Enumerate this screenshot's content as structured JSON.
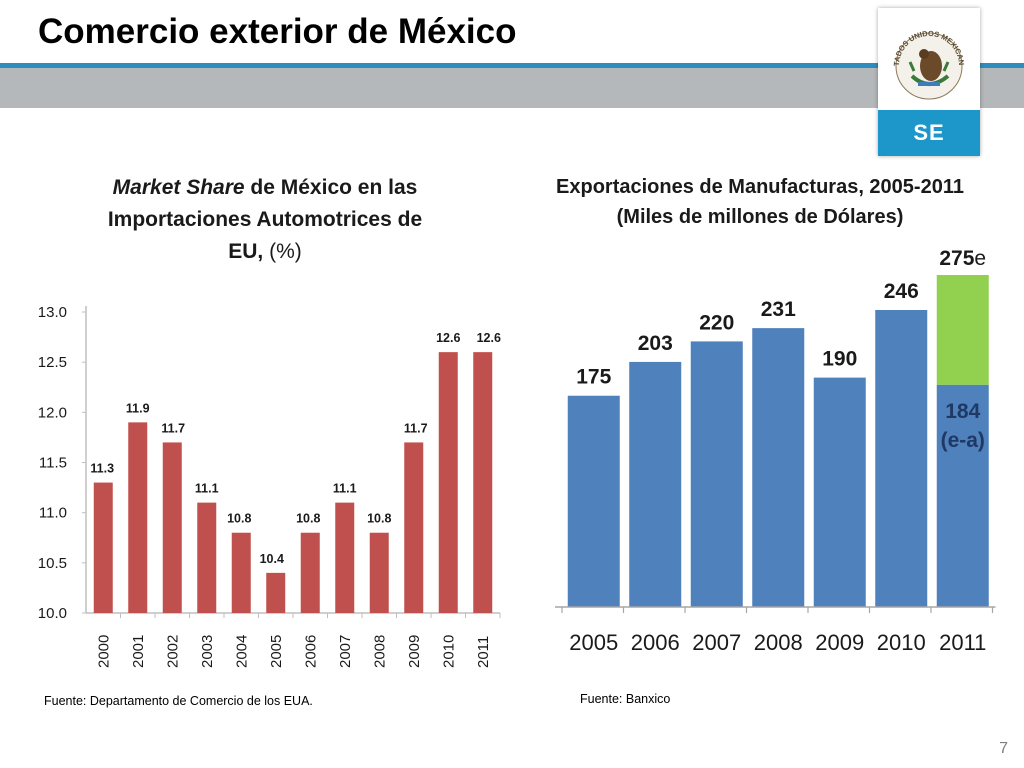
{
  "slide": {
    "title": "Comercio exterior de México",
    "page_number": "7",
    "logo_text": "SE",
    "seal_text": "ESTADOS UNIDOS MEXICANOS"
  },
  "chart_data": [
    {
      "type": "bar",
      "title_italic": "Market Share",
      "title_rest_1": " de México en las",
      "title_line2": "Importaciones Automotrices de",
      "title_line3_bold": "EU,",
      "title_line3_rest": " (%)",
      "categories": [
        "2000",
        "2001",
        "2002",
        "2003",
        "2004",
        "2005",
        "2006",
        "2007",
        "2008",
        "2009",
        "2010",
        "2011"
      ],
      "values": [
        11.3,
        11.9,
        11.7,
        11.1,
        10.8,
        10.4,
        10.8,
        11.1,
        10.8,
        11.7,
        12.6,
        12.6
      ],
      "data_labels": [
        "11.3",
        "11.9",
        "11.7",
        "11.1",
        "10.8",
        "10.4",
        "10.8",
        "11.1",
        "10.8",
        "11.7",
        "12.6",
        "12.6"
      ],
      "yticks": [
        "10.0",
        "10.5",
        "11.0",
        "11.5",
        "12.0",
        "12.5",
        "13.0"
      ],
      "ylim": [
        10.0,
        13.0
      ],
      "bar_color": "#c0504d",
      "source": "Fuente: Departamento de Comercio de los EUA."
    },
    {
      "type": "bar",
      "title_line1": "Exportaciones de Manufacturas, 2005-2011",
      "title_line2": "(Miles de millones de Dólares)",
      "categories": [
        "2005",
        "2006",
        "2007",
        "2008",
        "2009",
        "2010",
        "2011"
      ],
      "values": [
        175,
        203,
        220,
        231,
        190,
        246,
        184
      ],
      "data_labels": [
        "175",
        "203",
        "220",
        "231",
        "190",
        "246",
        "184"
      ],
      "estimate_total": 275,
      "estimate_label_number": "275",
      "estimate_label_suffix": "e",
      "estimate_label_2011_sub": "(e-a)",
      "bar_color": "#4f81bd",
      "estimate_color": "#92d050",
      "source": "Fuente: Banxico"
    }
  ]
}
